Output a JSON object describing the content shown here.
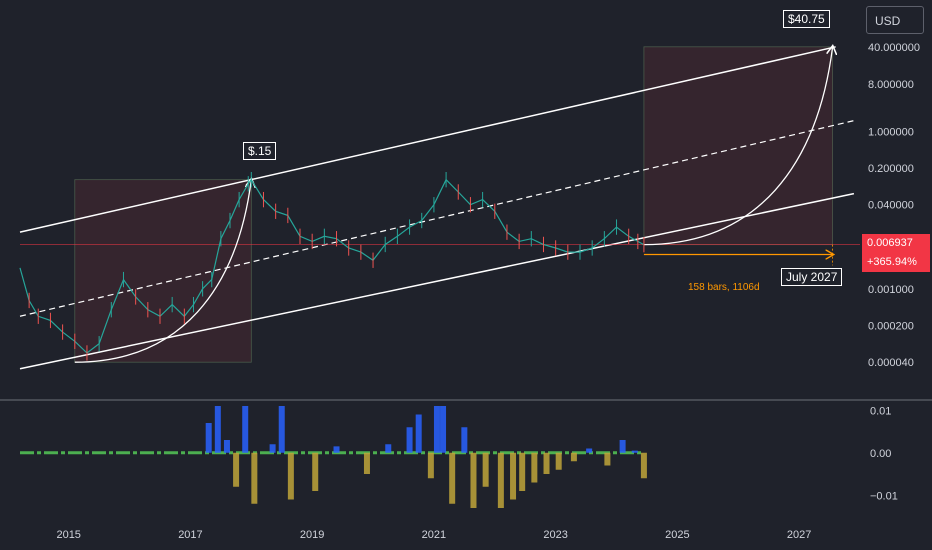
{
  "toolbar": {
    "currency_label": "USD"
  },
  "price": {
    "last": "0.006937",
    "change": "+365.94%"
  },
  "annotations": {
    "target_2018": "$.15",
    "target_2027": "$40.75",
    "target_date": "July 2027",
    "range_info": "158 bars, 1106d"
  },
  "colors": {
    "background": "#1f222b",
    "channel": "#ffffff",
    "box_fill": "#3a262f",
    "price_line": "#f23645",
    "range_arrow": "#ff9800",
    "candle_up": "#26a69a",
    "candle_down": "#ef5350"
  },
  "chart_data": [
    {
      "type": "line",
      "scale": "log",
      "currency": "USD",
      "y_ticks": [
        "40.000000",
        "8.000000",
        "1.000000",
        "0.200000",
        "0.040000",
        "0.001000",
        "0.000200",
        "0.000040"
      ],
      "x_ticks": [
        "2015",
        "2017",
        "2019",
        "2021",
        "2023",
        "2025",
        "2027"
      ],
      "xlim": [
        2014.2,
        2028.0
      ],
      "ylim": [
        2e-05,
        60
      ],
      "series": [
        {
          "x": [
            2014.2,
            2014.35,
            2014.5,
            2014.7,
            2014.9,
            2015.1,
            2015.3,
            2015.5,
            2015.7,
            2015.9,
            2016.1,
            2016.3,
            2016.5,
            2016.7,
            2016.9,
            2017.05,
            2017.2,
            2017.35,
            2017.5,
            2017.65,
            2017.8,
            2017.95,
            2018.0,
            2018.2,
            2018.4,
            2018.6,
            2018.8,
            2019.0,
            2019.2,
            2019.4,
            2019.6,
            2019.8,
            2020.0,
            2020.2,
            2020.4,
            2020.6,
            2020.8,
            2021.0,
            2021.2,
            2021.4,
            2021.6,
            2021.8,
            2022.0,
            2022.2,
            2022.4,
            2022.6,
            2022.8,
            2023.0,
            2023.2,
            2023.4,
            2023.6,
            2023.8,
            2024.0,
            2024.2,
            2024.35,
            2024.45
          ],
          "values": [
            0.0025,
            0.0006,
            0.0003,
            0.00025,
            0.00015,
            0.0001,
            6e-05,
            9e-05,
            0.0004,
            0.0015,
            0.0007,
            0.0004,
            0.0003,
            0.0005,
            0.0003,
            0.0005,
            0.001,
            0.0015,
            0.009,
            0.02,
            0.05,
            0.1,
            0.12,
            0.05,
            0.03,
            0.025,
            0.01,
            0.008,
            0.01,
            0.009,
            0.006,
            0.005,
            0.0035,
            0.007,
            0.01,
            0.015,
            0.02,
            0.04,
            0.12,
            0.07,
            0.04,
            0.05,
            0.03,
            0.012,
            0.008,
            0.009,
            0.007,
            0.006,
            0.005,
            0.005,
            0.006,
            0.009,
            0.015,
            0.01,
            0.008,
            0.006937
          ]
        }
      ]
    },
    {
      "type": "bar",
      "y_ticks": [
        "0.01",
        "0.00",
        "−0.01"
      ],
      "x_ticks": [
        "2015",
        "2017",
        "2019",
        "2021",
        "2023",
        "2025",
        "2027"
      ],
      "xlim": [
        2014.2,
        2028.0
      ],
      "ylim": [
        -0.013,
        0.011
      ],
      "series": [
        {
          "x": [
            2017.3,
            2017.45,
            2017.6,
            2017.75,
            2017.9,
            2018.05,
            2018.35,
            2018.5,
            2018.65,
            2019.05,
            2019.4,
            2019.9,
            2020.25,
            2020.6,
            2020.75,
            2020.95,
            2021.05,
            2021.15,
            2021.3,
            2021.5,
            2021.65,
            2021.85,
            2022.1,
            2022.3,
            2022.45,
            2022.65,
            2022.85,
            2023.05,
            2023.3,
            2023.55,
            2023.85,
            2024.1,
            2024.3,
            2024.45
          ],
          "values": [
            0.007,
            0.011,
            0.003,
            -0.008,
            0.011,
            -0.012,
            0.002,
            0.011,
            -0.011,
            -0.009,
            0.0015,
            -0.005,
            0.002,
            0.006,
            0.009,
            -0.006,
            0.011,
            0.011,
            -0.012,
            0.006,
            -0.013,
            -0.008,
            -0.013,
            -0.011,
            -0.009,
            -0.007,
            -0.005,
            -0.004,
            -0.002,
            0.001,
            -0.003,
            0.003,
            0.0005,
            -0.006
          ]
        }
      ]
    }
  ]
}
